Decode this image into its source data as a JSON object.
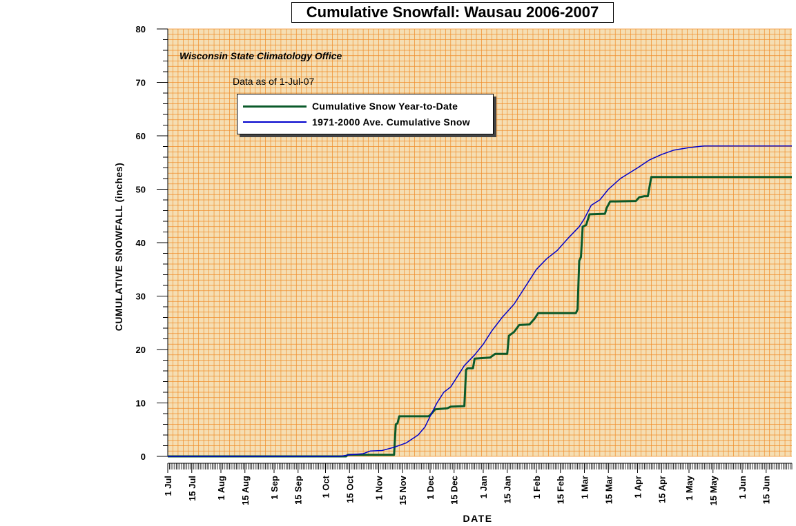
{
  "chart_data": {
    "type": "line",
    "title": "Cumulative Snowfall: Wausau 2006-2007",
    "source_note": "Wisconsin State Climatology Office",
    "as_of_note": "Data as of 1-Jul-07",
    "xlabel": "DATE",
    "ylabel": "CUMULATIVE SNOWFALL (inches)",
    "x_range": [
      "2006-07-01",
      "2007-06-30"
    ],
    "ylim": [
      0,
      80
    ],
    "y_ticks": [
      0,
      10,
      20,
      30,
      40,
      50,
      60,
      70,
      80
    ],
    "x_tick_labels": [
      {
        "date": "2006-07-01",
        "label": "1 Jul"
      },
      {
        "date": "2006-07-15",
        "label": "15 Jul"
      },
      {
        "date": "2006-08-01",
        "label": "1 Aug"
      },
      {
        "date": "2006-08-15",
        "label": "15 Aug"
      },
      {
        "date": "2006-09-01",
        "label": "1 Sep"
      },
      {
        "date": "2006-09-15",
        "label": "15 Sep"
      },
      {
        "date": "2006-10-01",
        "label": "1 Oct"
      },
      {
        "date": "2006-10-15",
        "label": "15 Oct"
      },
      {
        "date": "2006-11-01",
        "label": "1 Nov"
      },
      {
        "date": "2006-11-15",
        "label": "15 Nov"
      },
      {
        "date": "2006-12-01",
        "label": "1 Dec"
      },
      {
        "date": "2006-12-15",
        "label": "15 Dec"
      },
      {
        "date": "2007-01-01",
        "label": "1 Jan"
      },
      {
        "date": "2007-01-15",
        "label": "15 Jan"
      },
      {
        "date": "2007-02-01",
        "label": "1 Feb"
      },
      {
        "date": "2007-02-15",
        "label": "15 Feb"
      },
      {
        "date": "2007-03-01",
        "label": "1 Mar"
      },
      {
        "date": "2007-03-15",
        "label": "15 Mar"
      },
      {
        "date": "2007-04-01",
        "label": "1 Apr"
      },
      {
        "date": "2007-04-15",
        "label": "15 Apr"
      },
      {
        "date": "2007-05-01",
        "label": "1 May"
      },
      {
        "date": "2007-05-15",
        "label": "15 May"
      },
      {
        "date": "2007-06-01",
        "label": "1 Jun"
      },
      {
        "date": "2007-06-15",
        "label": "15 Jun"
      }
    ],
    "grid": true,
    "legend_position": "top-left",
    "plot_background": "#f5deb3",
    "grid_color": "#f08c28",
    "series": [
      {
        "name": "Cumulative Snow Year-to-Date",
        "color": "#0b5a2a",
        "step": true,
        "points": [
          [
            "2006-07-01",
            0.0
          ],
          [
            "2006-10-13",
            0.0
          ],
          [
            "2006-10-14",
            0.3
          ],
          [
            "2006-11-10",
            0.3
          ],
          [
            "2006-11-11",
            6.0
          ],
          [
            "2006-11-12",
            6.2
          ],
          [
            "2006-11-13",
            7.5
          ],
          [
            "2006-11-30",
            7.5
          ],
          [
            "2006-12-01",
            7.7
          ],
          [
            "2006-12-04",
            8.8
          ],
          [
            "2006-12-11",
            9.0
          ],
          [
            "2006-12-13",
            9.3
          ],
          [
            "2006-12-21",
            9.4
          ],
          [
            "2006-12-22",
            16.2
          ],
          [
            "2006-12-23",
            16.5
          ],
          [
            "2006-12-26",
            16.5
          ],
          [
            "2006-12-27",
            18.3
          ],
          [
            "2007-01-05",
            18.5
          ],
          [
            "2007-01-08",
            19.2
          ],
          [
            "2007-01-15",
            19.2
          ],
          [
            "2007-01-16",
            22.6
          ],
          [
            "2007-01-19",
            23.3
          ],
          [
            "2007-01-22",
            24.6
          ],
          [
            "2007-01-28",
            24.7
          ],
          [
            "2007-01-31",
            25.8
          ],
          [
            "2007-02-02",
            26.8
          ],
          [
            "2007-02-24",
            26.8
          ],
          [
            "2007-02-25",
            27.5
          ],
          [
            "2007-02-26",
            36.6
          ],
          [
            "2007-02-27",
            37.3
          ],
          [
            "2007-02-28",
            43.0
          ],
          [
            "2007-03-02",
            43.3
          ],
          [
            "2007-03-04",
            45.3
          ],
          [
            "2007-03-13",
            45.4
          ],
          [
            "2007-03-14",
            46.5
          ],
          [
            "2007-03-16",
            47.7
          ],
          [
            "2007-03-31",
            47.8
          ],
          [
            "2007-04-02",
            48.5
          ],
          [
            "2007-04-05",
            48.7
          ],
          [
            "2007-04-07",
            48.7
          ],
          [
            "2007-04-09",
            52.3
          ],
          [
            "2007-06-30",
            52.3
          ]
        ]
      },
      {
        "name": "1971-2000 Ave. Cumulative Snow",
        "color": "#0000cc",
        "step": false,
        "points": [
          [
            "2006-07-01",
            0.0
          ],
          [
            "2006-10-09",
            0.0
          ],
          [
            "2006-10-15",
            0.3
          ],
          [
            "2006-10-23",
            0.5
          ],
          [
            "2006-10-27",
            1.0
          ],
          [
            "2006-11-03",
            1.1
          ],
          [
            "2006-11-10",
            1.7
          ],
          [
            "2006-11-17",
            2.5
          ],
          [
            "2006-11-24",
            4.0
          ],
          [
            "2006-11-28",
            5.5
          ],
          [
            "2006-12-01",
            7.5
          ],
          [
            "2006-12-05",
            10.0
          ],
          [
            "2006-12-09",
            12.0
          ],
          [
            "2006-12-13",
            13.0
          ],
          [
            "2006-12-17",
            15.0
          ],
          [
            "2006-12-21",
            17.0
          ],
          [
            "2006-12-27",
            19.0
          ],
          [
            "2007-01-01",
            21.0
          ],
          [
            "2007-01-06",
            23.5
          ],
          [
            "2007-01-12",
            26.0
          ],
          [
            "2007-01-19",
            28.5
          ],
          [
            "2007-01-26",
            32.0
          ],
          [
            "2007-02-01",
            35.0
          ],
          [
            "2007-02-07",
            37.0
          ],
          [
            "2007-02-13",
            38.5
          ],
          [
            "2007-02-20",
            41.0
          ],
          [
            "2007-02-26",
            43.0
          ],
          [
            "2007-03-01",
            44.5
          ],
          [
            "2007-03-05",
            47.0
          ],
          [
            "2007-03-10",
            48.0
          ],
          [
            "2007-03-15",
            50.0
          ],
          [
            "2007-03-22",
            52.0
          ],
          [
            "2007-04-01",
            54.0
          ],
          [
            "2007-04-08",
            55.5
          ],
          [
            "2007-04-15",
            56.5
          ],
          [
            "2007-04-22",
            57.3
          ],
          [
            "2007-05-01",
            57.8
          ],
          [
            "2007-05-10",
            58.1
          ],
          [
            "2007-06-30",
            58.1
          ]
        ]
      }
    ]
  }
}
